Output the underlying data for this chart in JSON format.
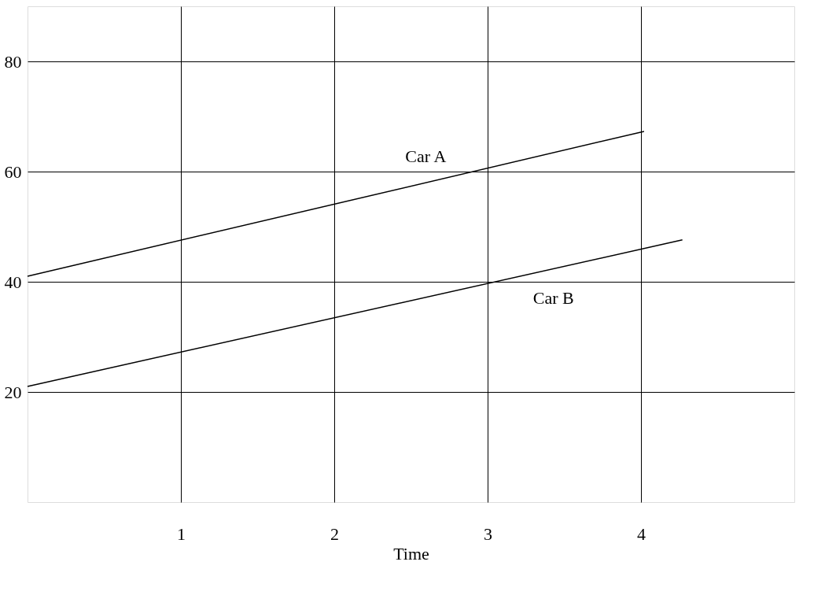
{
  "chart_data": {
    "type": "line",
    "xlabel": "Time",
    "series": [
      {
        "name": "Car A",
        "color": "#000000",
        "x": [
          0,
          4.02
        ],
        "values": [
          41,
          67.3
        ]
      },
      {
        "name": "Car B",
        "color": "#000000",
        "x": [
          0,
          4.27
        ],
        "values": [
          21,
          47.6
        ]
      }
    ],
    "xlim": [
      0,
      5
    ],
    "xticks": [
      1,
      2,
      3,
      4
    ],
    "ylim": [
      0,
      90
    ],
    "yticks": [
      20,
      40,
      60,
      80
    ],
    "grid": true,
    "marker": "none",
    "line_style": "solid"
  }
}
